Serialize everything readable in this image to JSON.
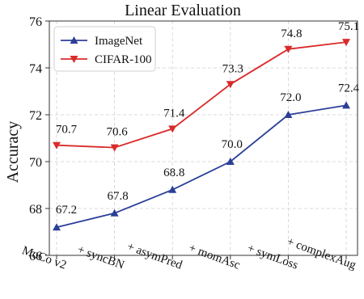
{
  "chart_data": {
    "type": "line",
    "title": "Linear Evaluation",
    "xlabel": "",
    "ylabel": "Accuracy",
    "categories": [
      "MoCo v2",
      "+ syncBN",
      "+ asymPred",
      "+ momAsc",
      "+ symLoss",
      "+ complexAug"
    ],
    "ylim": [
      66,
      76
    ],
    "yticks": [
      66,
      68,
      70,
      72,
      74,
      76
    ],
    "grid": true,
    "legend_position": "top-left",
    "series": [
      {
        "name": "ImageNet",
        "values": [
          67.2,
          67.8,
          68.8,
          70.0,
          72.0,
          72.4
        ],
        "labels": [
          "67.2",
          "67.8",
          "68.8",
          "70.0",
          "72.0",
          "72.4"
        ],
        "color": "#2b3f97",
        "marker": "triangle-up"
      },
      {
        "name": "CIFAR-100",
        "values": [
          70.7,
          70.6,
          71.4,
          73.3,
          74.8,
          75.1
        ],
        "labels": [
          "70.7",
          "70.6",
          "71.4",
          "73.3",
          "74.8",
          "75.1"
        ],
        "color": "#d92b2b",
        "marker": "triangle-down"
      }
    ]
  }
}
